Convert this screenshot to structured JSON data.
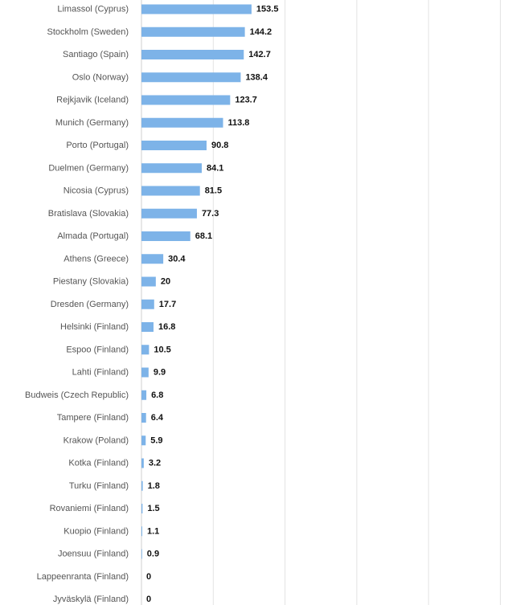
{
  "colors": {
    "bar": "#7db3e8",
    "grid": "#e3e3e3",
    "label": "#555555",
    "value": "#111111"
  },
  "chart_data": {
    "type": "bar",
    "orientation": "horizontal",
    "title": "",
    "xlabel": "",
    "ylabel": "",
    "grid": true,
    "xlim": [
      0,
      500
    ],
    "categories": [
      "Limassol (Cyprus)",
      "Stockholm (Sweden)",
      "Santiago (Spain)",
      "Oslo (Norway)",
      "Rejkjavik (Iceland)",
      "Munich (Germany)",
      "Porto (Portugal)",
      "Duelmen (Germany)",
      "Nicosia (Cyprus)",
      "Bratislava (Slovakia)",
      "Almada (Portugal)",
      "Athens (Greece)",
      "Piestany (Slovakia)",
      "Dresden (Germany)",
      "Helsinki (Finland)",
      "Espoo (Finland)",
      "Lahti (Finland)",
      "Budweis (Czech Republic)",
      "Tampere (Finland)",
      "Krakow (Poland)",
      "Kotka (Finland)",
      "Turku (Finland)",
      "Rovaniemi (Finland)",
      "Kuopio (Finland)",
      "Joensuu (Finland)",
      "Lappeenranta (Finland)",
      "Jyväskylä (Finland)"
    ],
    "values": [
      153.5,
      144.2,
      142.7,
      138.4,
      123.7,
      113.8,
      90.8,
      84.1,
      81.5,
      77.3,
      68.1,
      30.4,
      20,
      17.7,
      16.8,
      10.5,
      9.9,
      6.8,
      6.4,
      5.9,
      3.2,
      1.8,
      1.5,
      1.1,
      0.9,
      0,
      0
    ],
    "value_labels": [
      "153.5",
      "144.2",
      "142.7",
      "138.4",
      "123.7",
      "113.8",
      "90.8",
      "84.1",
      "81.5",
      "77.3",
      "68.1",
      "30.4",
      "20",
      "17.7",
      "16.8",
      "10.5",
      "9.9",
      "6.8",
      "6.4",
      "5.9",
      "3.2",
      "1.8",
      "1.5",
      "1.1",
      "0.9",
      "0",
      "0"
    ]
  }
}
